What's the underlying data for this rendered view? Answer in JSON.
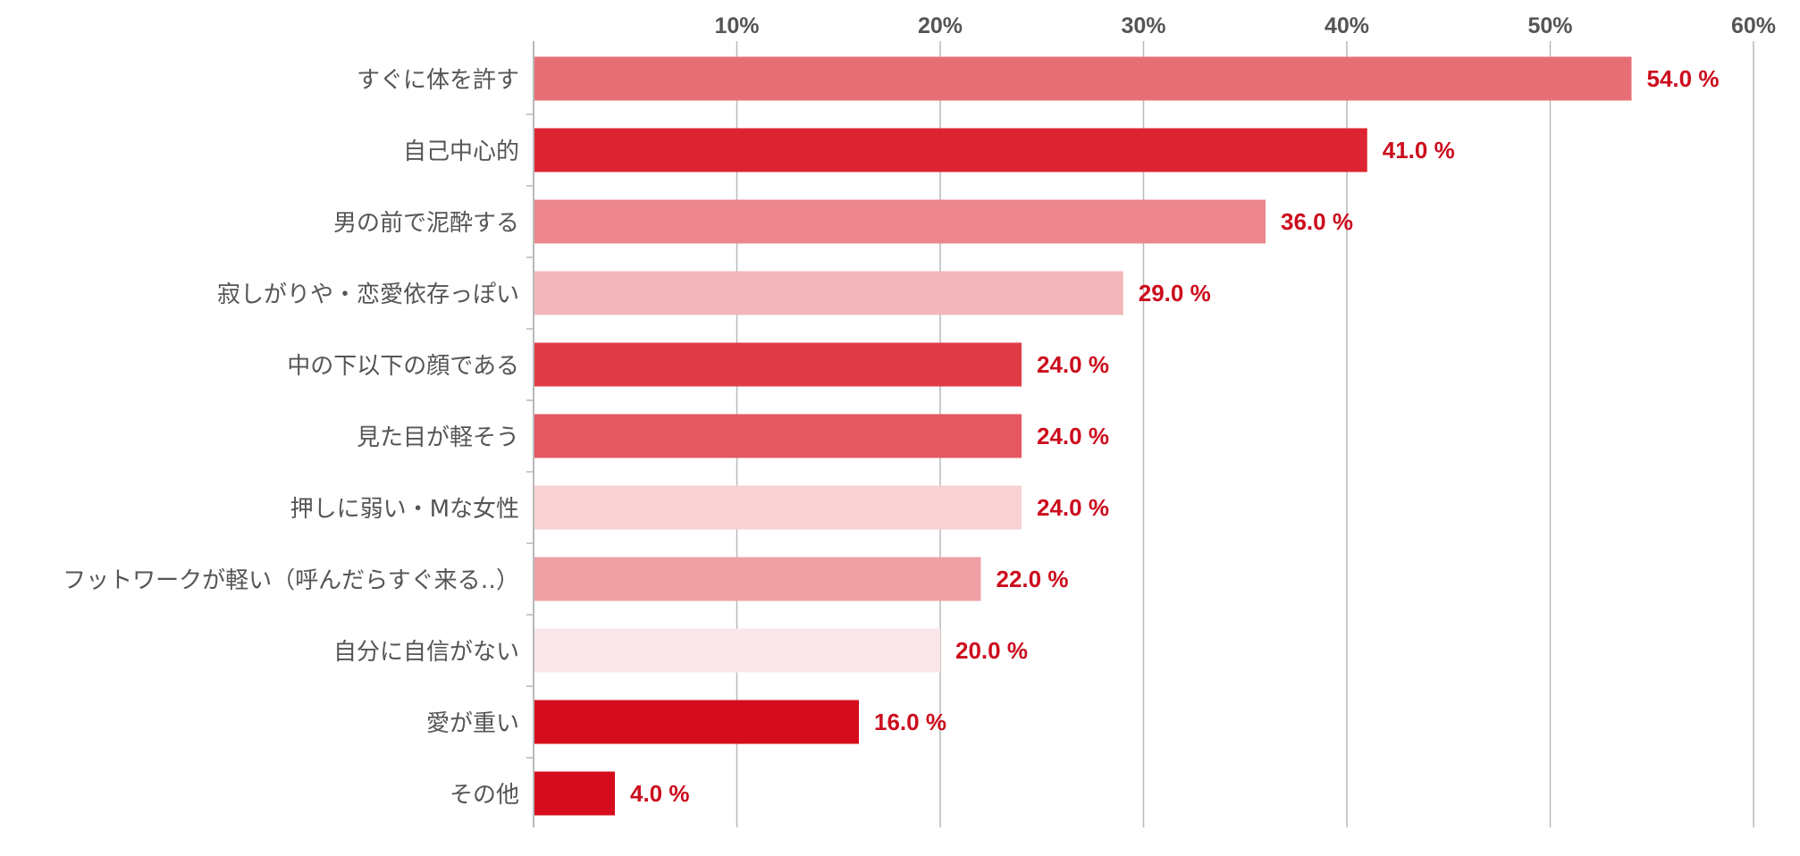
{
  "chart_data": {
    "type": "bar",
    "orientation": "horizontal",
    "xlim": [
      0,
      60
    ],
    "x_ticks": [
      {
        "value": 10,
        "label": "10%"
      },
      {
        "value": 20,
        "label": "20%"
      },
      {
        "value": 30,
        "label": "30%"
      },
      {
        "value": 40,
        "label": "40%"
      },
      {
        "value": 50,
        "label": "50%"
      },
      {
        "value": 60,
        "label": "60%"
      }
    ],
    "grid": true,
    "categories": [
      "すぐに体を許す",
      "自己中心的",
      "男の前で泥酔する",
      "寂しがりや・恋愛依存っぽい",
      "中の下以下の顔である",
      "見た目が軽そう",
      "押しに弱い・Mな女性",
      "フットワークが軽い（呼んだらすぐ来る‥）",
      "自分に自信がない",
      "愛が重い",
      "その他"
    ],
    "values": [
      54.0,
      41.0,
      36.0,
      29.0,
      24.0,
      24.0,
      24.0,
      22.0,
      20.0,
      16.0,
      4.0
    ],
    "value_labels": [
      "54.0 %",
      "41.0 %",
      "36.0 %",
      "29.0 %",
      "24.0 %",
      "24.0 %",
      "24.0 %",
      "22.0 %",
      "20.0 %",
      "16.0 %",
      "4.0 %"
    ],
    "bar_colors": [
      "#e86e76",
      "#dd2432",
      "#ec858c",
      "#f2b7bb",
      "#e03c48",
      "#e55761",
      "#f7d1d4",
      "#efa0a5",
      "#fae6e8",
      "#d50c1b",
      "#d50c1b"
    ],
    "label_color": "#cc0d1d",
    "category_label_color": "#555555",
    "tick_label_color": "#555555",
    "grid_color": "#b9b9b9"
  }
}
